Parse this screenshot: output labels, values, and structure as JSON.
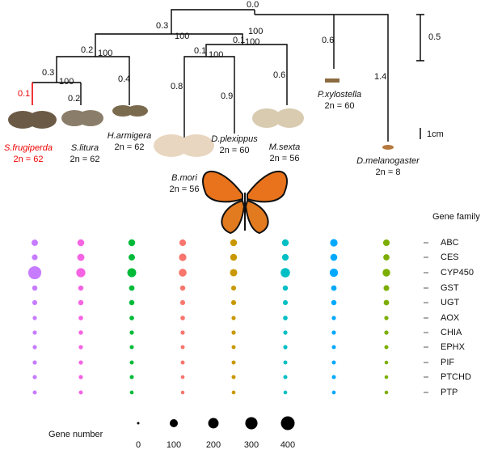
{
  "tree": {
    "branch_lengths": [
      "0.0",
      "0.3",
      "0.2",
      "0.3",
      "0.1",
      "0.2",
      "0.4",
      "0.1",
      "0.1",
      "0.8",
      "0.9",
      "0.6",
      "0.6",
      "1.4"
    ],
    "bootstrap": [
      "100",
      "100",
      "100",
      "100",
      "100",
      "100"
    ]
  },
  "scale_bars": [
    "0.5",
    "1cm"
  ],
  "species": [
    {
      "name": "S.frugiperda",
      "karyotype": "2n = 62",
      "color": "#c77cff",
      "gene_numbers": [
        50,
        35,
        350,
        25,
        20,
        10,
        10,
        10,
        10,
        10,
        8
      ]
    },
    {
      "name": "S.litura",
      "karyotype": "2n = 62",
      "color": "#f564e3",
      "gene_numbers": [
        60,
        70,
        140,
        25,
        25,
        15,
        12,
        10,
        10,
        10,
        8
      ]
    },
    {
      "name": "H.armigera",
      "karyotype": "2n = 62",
      "color": "#00ba38",
      "gene_numbers": [
        60,
        50,
        130,
        30,
        25,
        15,
        10,
        8,
        8,
        8,
        6
      ]
    },
    {
      "name": "B.mori",
      "karyotype": "2n = 56",
      "color": "#f8766d",
      "gene_numbers": [
        55,
        80,
        90,
        25,
        20,
        15,
        10,
        8,
        8,
        6,
        5
      ]
    },
    {
      "name": "D.plexippus",
      "karyotype": "2n = 60",
      "color": "#c99800",
      "gene_numbers": [
        60,
        60,
        75,
        20,
        20,
        10,
        10,
        8,
        8,
        8,
        6
      ]
    },
    {
      "name": "M.sexta",
      "karyotype": "2n = 56",
      "color": "#00bfc4",
      "gene_numbers": [
        60,
        55,
        150,
        25,
        20,
        15,
        10,
        10,
        8,
        8,
        6
      ]
    },
    {
      "name": "P.xylostella",
      "karyotype": "2n = 60",
      "color": "#00a9ff",
      "gene_numbers": [
        80,
        65,
        110,
        30,
        25,
        10,
        10,
        8,
        8,
        8,
        6
      ]
    },
    {
      "name": "D.melanogaster",
      "karyotype": "2n = 8",
      "color": "#7cae00",
      "gene_numbers": [
        55,
        45,
        85,
        35,
        30,
        10,
        10,
        8,
        5,
        5,
        5
      ]
    }
  ],
  "gene_family_title": "Gene family",
  "gene_families": [
    "ABC",
    "CES",
    "CYP450",
    "GST",
    "UGT",
    "AOX",
    "CHIA",
    "EPHX",
    "PIF",
    "PTCHD",
    "PTP"
  ],
  "size_legend": {
    "title": "Gene number",
    "values": [
      0,
      100,
      200,
      300,
      400
    ]
  }
}
